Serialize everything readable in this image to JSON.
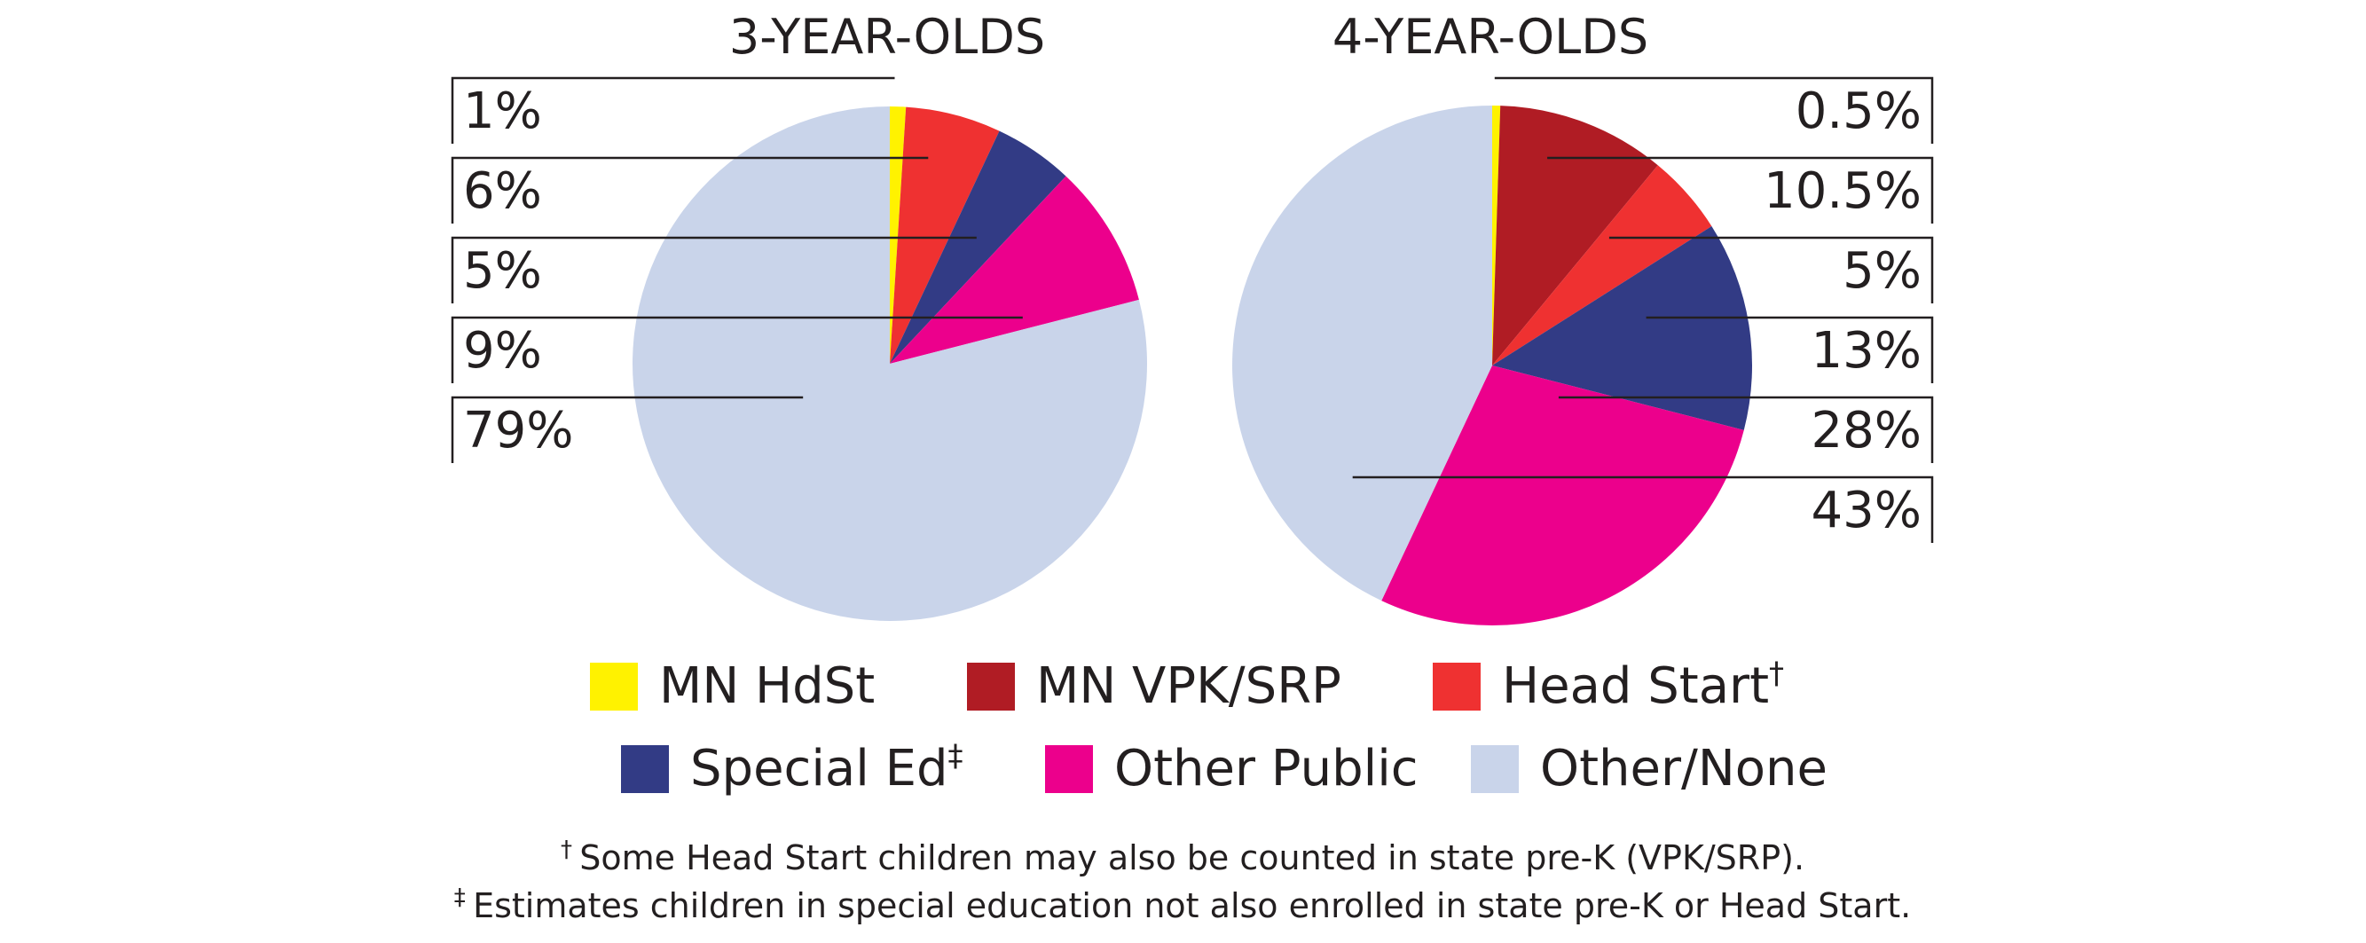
{
  "chart_data": [
    {
      "type": "pie",
      "title": "3-YEAR-OLDS",
      "start_angle_deg": 0,
      "direction": "clockwise",
      "slices": [
        {
          "label": "MN HdSt",
          "value": 1,
          "display": "1%"
        },
        {
          "label": "Head Start",
          "value": 6,
          "display": "6%"
        },
        {
          "label": "Special Ed",
          "value": 5,
          "display": "5%"
        },
        {
          "label": "Other Public",
          "value": 9,
          "display": "9%"
        },
        {
          "label": "Other/None",
          "value": 79,
          "display": "79%"
        }
      ],
      "label_side": "left"
    },
    {
      "type": "pie",
      "title": "4-YEAR-OLDS",
      "start_angle_deg": 0,
      "direction": "clockwise",
      "slices": [
        {
          "label": "MN HdSt",
          "value": 0.5,
          "display": "0.5%"
        },
        {
          "label": "MN VPK/SRP",
          "value": 10.5,
          "display": "10.5%"
        },
        {
          "label": "Head Start",
          "value": 5,
          "display": "5%"
        },
        {
          "label": "Special Ed",
          "value": 13,
          "display": "13%"
        },
        {
          "label": "Other Public",
          "value": 28,
          "display": "28%"
        },
        {
          "label": "Other/None",
          "value": 43,
          "display": "43%"
        }
      ],
      "label_side": "right"
    }
  ],
  "legend": {
    "placement": "bottom",
    "items": [
      {
        "label": "MN HdSt",
        "sup": "",
        "color": "#fff200"
      },
      {
        "label": "MN VPK/SRP",
        "sup": "",
        "color": "#b01c24"
      },
      {
        "label": "Head Start",
        "sup": "†",
        "color": "#ef3131"
      },
      {
        "label": "Special Ed",
        "sup": "‡",
        "color": "#323b85"
      },
      {
        "label": "Other Public",
        "sup": "",
        "color": "#ec008c"
      },
      {
        "label": "Other/None",
        "sup": "",
        "color": "#c9d4ea"
      }
    ]
  },
  "colors": {
    "MN HdSt": "#fff200",
    "MN VPK/SRP": "#b01c24",
    "Head Start": "#ef3131",
    "Special Ed": "#323b85",
    "Other Public": "#ec008c",
    "Other/None": "#c9d4ea"
  },
  "footnotes": [
    {
      "mark": "†",
      "text": "Some Head Start children may also be counted in state pre-K (VPK/SRP)."
    },
    {
      "mark": "‡",
      "text": "Estimates children in special education not also enrolled in state pre-K or Head Start."
    }
  ]
}
